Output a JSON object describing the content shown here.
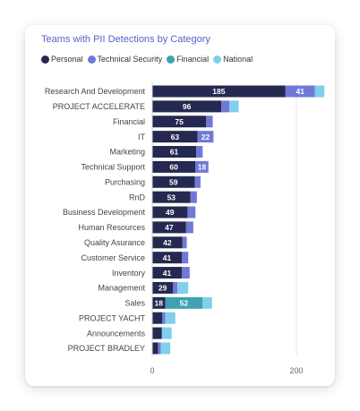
{
  "chart_data": {
    "type": "bar",
    "orientation": "horizontal",
    "stacked": true,
    "title": "Teams with PII Detections by Category",
    "legend_position": "top-left",
    "categories": [
      "Research And Development",
      "PROJECT ACCELERATE",
      "Financial",
      "IT",
      "Marketing",
      "Technical Support",
      "Purchasing",
      "RnD",
      "Business Development",
      "Human Resources",
      "Quality Asurance",
      "Customer Service",
      "Inventory",
      "Management",
      "Sales",
      "PROJECT YACHT",
      "Announcements",
      "PROJECT BRADLEY"
    ],
    "series": [
      {
        "name": "Personal",
        "color": "#252850",
        "values": [
          185,
          96,
          75,
          63,
          61,
          60,
          59,
          53,
          49,
          47,
          42,
          41,
          41,
          29,
          18,
          14,
          13,
          8
        ],
        "labels": [
          "185",
          "96",
          "75",
          "63",
          "61",
          "60",
          "59",
          "53",
          "49",
          "47",
          "42",
          "41",
          "41",
          "29",
          "18",
          "",
          "",
          ""
        ]
      },
      {
        "name": "Technical Security",
        "color": "#7079d8",
        "values": [
          41,
          11,
          9,
          22,
          9,
          18,
          8,
          9,
          11,
          10,
          6,
          9,
          11,
          6,
          0,
          4,
          1,
          4
        ],
        "labels": [
          "41",
          "",
          "",
          "22",
          "",
          "18",
          "",
          "",
          "",
          "",
          "",
          "",
          "",
          "",
          "",
          "",
          "",
          ""
        ]
      },
      {
        "name": "Financial",
        "color": "#3fa2ae",
        "values": [
          0,
          0,
          0,
          0,
          0,
          0,
          0,
          0,
          0,
          0,
          0,
          0,
          0,
          0,
          52,
          0,
          0,
          0
        ],
        "labels": [
          "",
          "",
          "",
          "",
          "",
          "",
          "",
          "",
          "",
          "",
          "",
          "",
          "",
          "",
          "52",
          "",
          "",
          ""
        ]
      },
      {
        "name": "National",
        "color": "#7fd0ec",
        "values": [
          13,
          13,
          0,
          0,
          0,
          0,
          0,
          0,
          0,
          0,
          0,
          0,
          0,
          15,
          13,
          14,
          13,
          13
        ],
        "labels": [
          "",
          "",
          "",
          "",
          "",
          "",
          "",
          "",
          "",
          "",
          "",
          "",
          "",
          "",
          "",
          "",
          "",
          ""
        ]
      }
    ],
    "xlim": [
      0,
      230
    ],
    "xticks": [
      "0",
      "200"
    ],
    "xtick_values": [
      0,
      200
    ],
    "grid": true
  }
}
